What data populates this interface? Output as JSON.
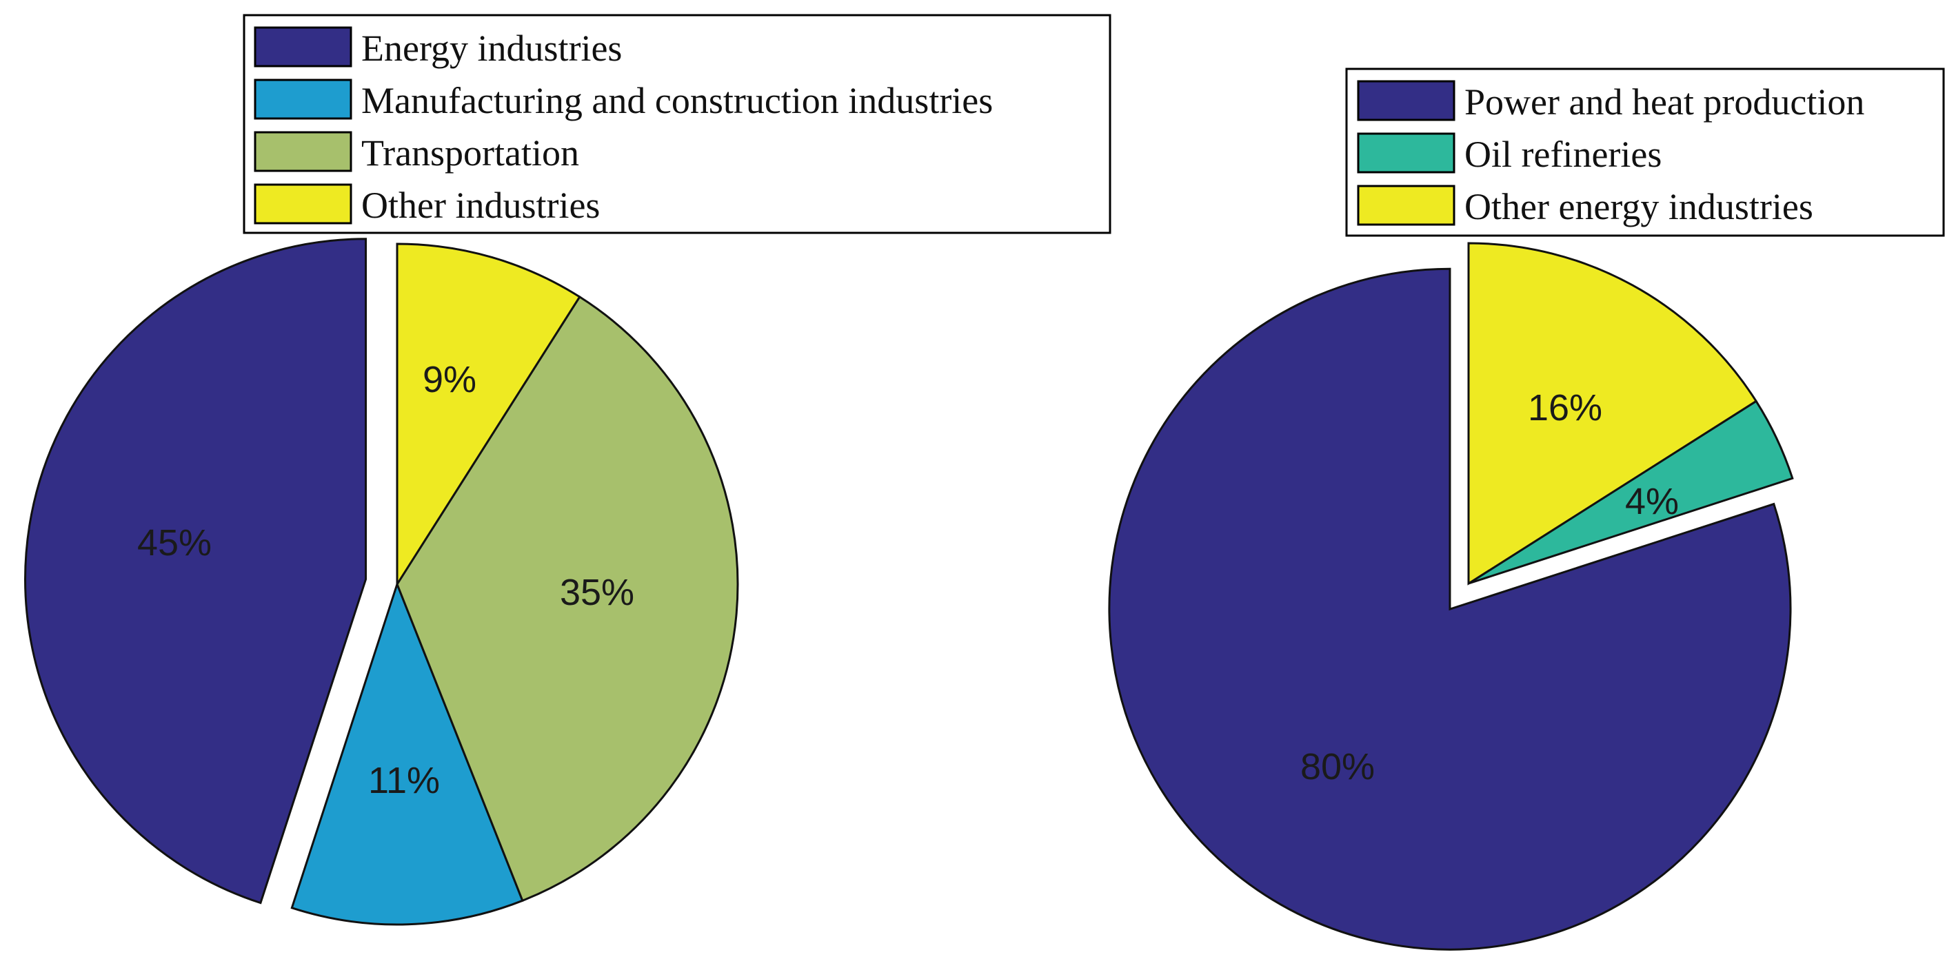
{
  "chart_data": [
    {
      "type": "pie",
      "title": "",
      "slices": [
        {
          "label": "Energy industries",
          "value": 45,
          "color": "#332e86",
          "exploded": true,
          "display": "45%"
        },
        {
          "label": "Manufacturing and construction industries",
          "value": 11,
          "color": "#1e9dcf",
          "exploded": false,
          "display": "11%"
        },
        {
          "label": "Transportation",
          "value": 35,
          "color": "#a7c06c",
          "exploded": false,
          "display": "35%"
        },
        {
          "label": "Other industries",
          "value": 9,
          "color": "#eeea22",
          "exploded": false,
          "display": "9%"
        }
      ],
      "legend": {
        "placement": "top",
        "entries": [
          "Energy industries",
          "Manufacturing and construction industries",
          "Transportation",
          "Other industries"
        ]
      }
    },
    {
      "type": "pie",
      "title": "",
      "slices": [
        {
          "label": "Power and heat production",
          "value": 80,
          "color": "#332e86",
          "exploded": true,
          "display": "80%"
        },
        {
          "label": "Oil refineries",
          "value": 4,
          "color": "#2db89c",
          "exploded": false,
          "display": "4%"
        },
        {
          "label": "Other energy industries",
          "value": 16,
          "color": "#eeea22",
          "exploded": false,
          "display": "16%"
        }
      ],
      "legend": {
        "placement": "top-right",
        "entries": [
          "Power and heat production",
          "Oil refineries",
          "Other energy industries"
        ]
      }
    }
  ]
}
